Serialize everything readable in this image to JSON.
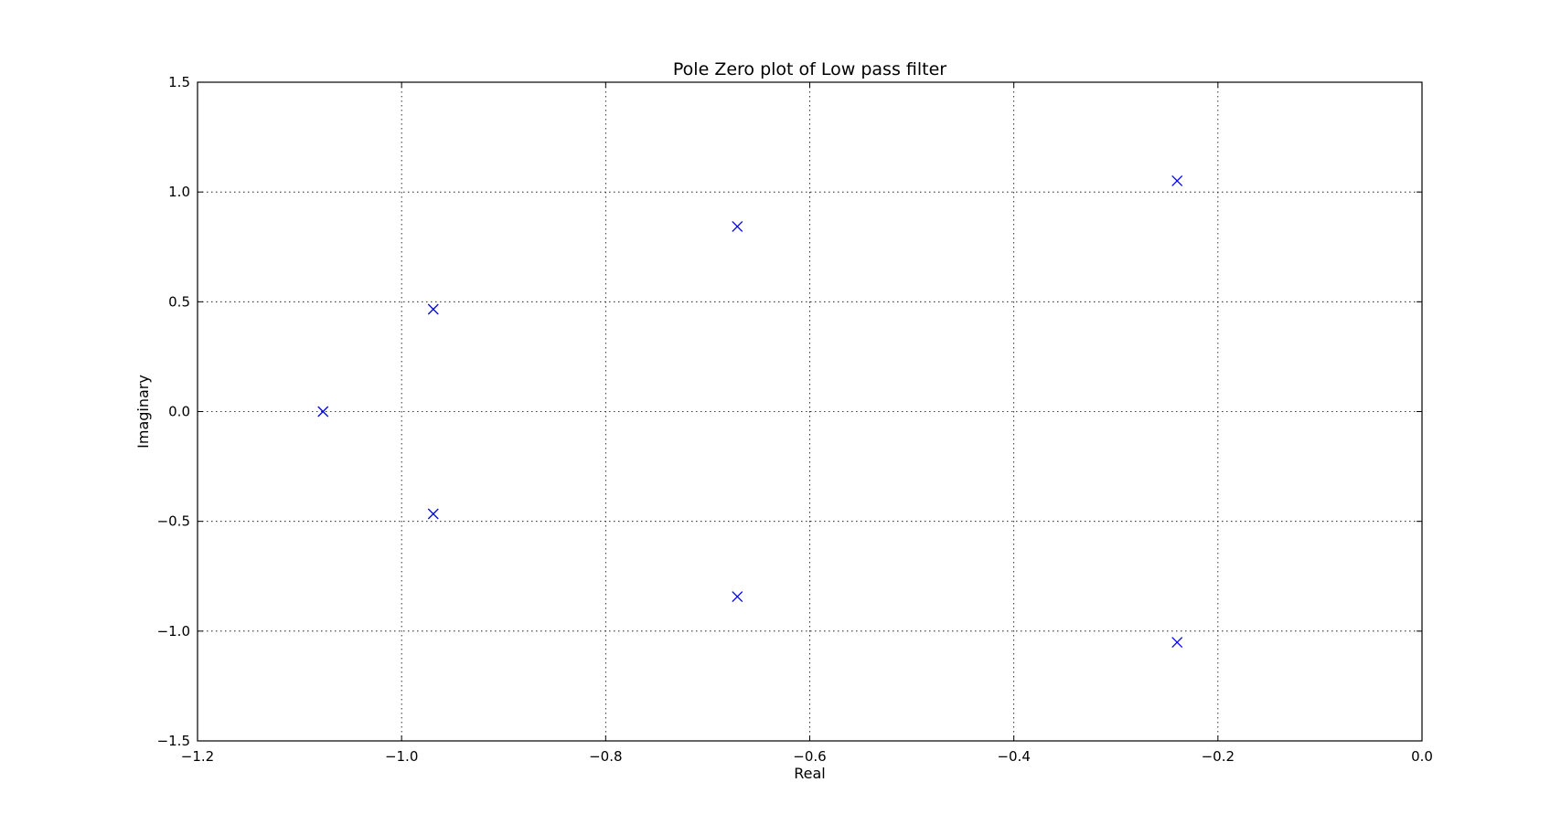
{
  "chart_data": {
    "type": "scatter",
    "title": "Pole Zero plot of Low pass filter",
    "xlabel": "Real",
    "ylabel": "Imaginary",
    "xlim": [
      -1.2,
      0.0
    ],
    "ylim": [
      -1.5,
      1.5
    ],
    "grid": true,
    "marker": "x",
    "marker_color": "#0000ff",
    "x_ticks": [
      -1.2,
      -1.0,
      -0.8,
      -0.6,
      -0.4,
      -0.2,
      0.0
    ],
    "x_tick_labels": [
      "−1.2",
      "−1.0",
      "−0.8",
      "−0.6",
      "−0.4",
      "−0.2",
      "0.0"
    ],
    "y_ticks": [
      1.5,
      1.0,
      0.5,
      0.0,
      -0.5,
      -1.0,
      -1.5
    ],
    "y_tick_labels": [
      "1.5",
      "1.0",
      "0.5",
      "0.0",
      "−0.5",
      "−1.0",
      "−1.5"
    ],
    "points": [
      {
        "x": -1.077,
        "y": 0.0
      },
      {
        "x": -0.969,
        "y": 0.466
      },
      {
        "x": -0.969,
        "y": -0.466
      },
      {
        "x": -0.671,
        "y": 0.843
      },
      {
        "x": -0.671,
        "y": -0.843
      },
      {
        "x": -0.24,
        "y": 1.051
      },
      {
        "x": -0.24,
        "y": -1.051
      }
    ]
  }
}
